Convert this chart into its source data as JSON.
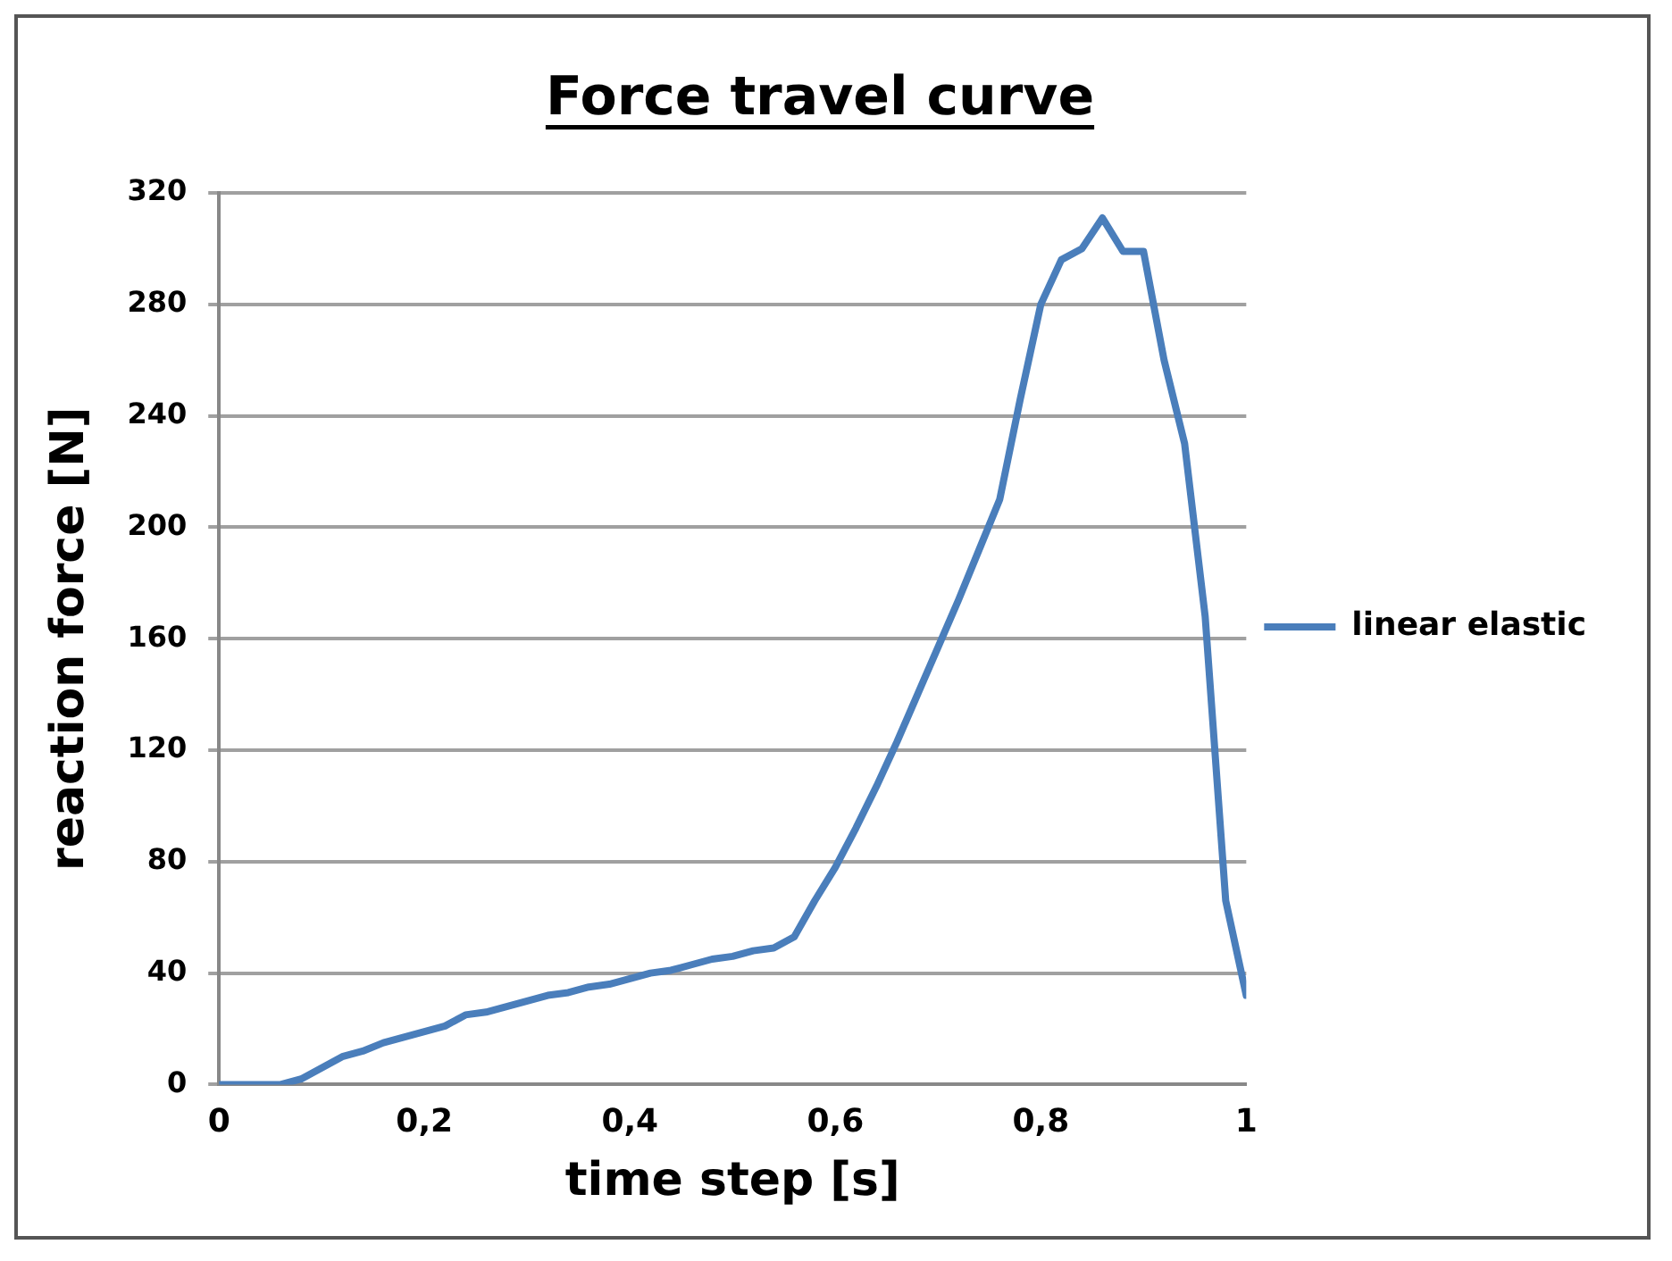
{
  "chart_data": {
    "type": "line",
    "title": "Force travel curve",
    "xlabel": "time step [s]",
    "ylabel": "reaction force [N]",
    "x": [
      0,
      0.02,
      0.04,
      0.06,
      0.08,
      0.1,
      0.12,
      0.14,
      0.16,
      0.18,
      0.2,
      0.22,
      0.24,
      0.26,
      0.28,
      0.3,
      0.32,
      0.34,
      0.36,
      0.38,
      0.4,
      0.42,
      0.44,
      0.46,
      0.48,
      0.5,
      0.52,
      0.54,
      0.56,
      0.58,
      0.6,
      0.62,
      0.64,
      0.66,
      0.68,
      0.7,
      0.72,
      0.74,
      0.76,
      0.78,
      0.8,
      0.82,
      0.84,
      0.86,
      0.88,
      0.9,
      0.92,
      0.94,
      0.96,
      0.98,
      1
    ],
    "series": [
      {
        "name": "linear elastic",
        "color": "#4a7ebb",
        "values": [
          0,
          0,
          0,
          0,
          2,
          6,
          10,
          12,
          15,
          17,
          19,
          21,
          25,
          26,
          28,
          30,
          32,
          33,
          35,
          36,
          38,
          40,
          41,
          43,
          45,
          46,
          48,
          49,
          53,
          66,
          78,
          92,
          107,
          123,
          140,
          157,
          174,
          192,
          210,
          246,
          280,
          296,
          300,
          311,
          299,
          299,
          260,
          230,
          168,
          66,
          32
        ]
      }
    ],
    "xlim": [
      0,
      1
    ],
    "xticks": [
      0,
      {
        "value": 0.2,
        "label": "0,2"
      },
      {
        "value": 0.4,
        "label": "0,4"
      },
      {
        "value": 0.6,
        "label": "0,6"
      },
      {
        "value": 0.8,
        "label": "0,8"
      },
      1
    ],
    "ylim": [
      0,
      320
    ],
    "yticks": [
      0,
      40,
      80,
      120,
      160,
      200,
      240,
      280,
      320
    ],
    "grid": "y",
    "legend": "right",
    "marker": "none",
    "line_style": "solid"
  }
}
